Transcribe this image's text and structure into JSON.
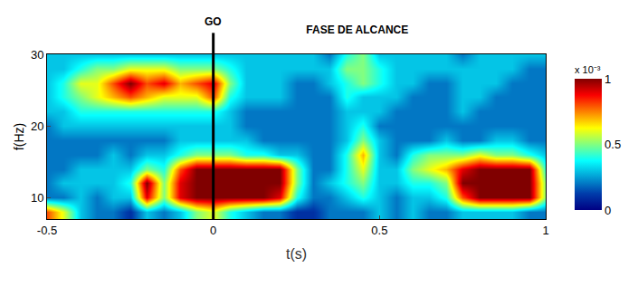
{
  "chart_data": {
    "type": "heatmap",
    "title": "FASE DE ALCANCE",
    "x_label": "t(s)",
    "y_label": "f(Hz)",
    "x": [
      -0.5,
      -0.45,
      -0.4,
      -0.35,
      -0.3,
      -0.25,
      -0.2,
      -0.15,
      -0.1,
      -0.05,
      0,
      0.05,
      0.1,
      0.15,
      0.2,
      0.25,
      0.3,
      0.35,
      0.4,
      0.45,
      0.5,
      0.55,
      0.6,
      0.65,
      0.7,
      0.75,
      0.8,
      0.85,
      0.9,
      0.95,
      1
    ],
    "y": [
      8,
      10,
      12,
      14,
      16,
      18,
      20,
      22,
      24,
      26,
      28,
      30
    ],
    "cells": [
      [
        0.8,
        0.6,
        0.3,
        0.2,
        0.2,
        0.1,
        0.3,
        0.2,
        0.3,
        0.5,
        0.6,
        0.4,
        0.3,
        0.2,
        0.2,
        0.1,
        0.1,
        0.2,
        0.2,
        0.2,
        0.3,
        0.2,
        0.3,
        0.2,
        0.2,
        0.3,
        0.3,
        0.3,
        0.3,
        0.2,
        0.2
      ],
      [
        0.2,
        0.2,
        0.3,
        0.2,
        0.3,
        0.3,
        0.9,
        0.5,
        0.9,
        1,
        1,
        1,
        1,
        1,
        0.9,
        0.4,
        0.2,
        0.2,
        0.3,
        0.4,
        0.3,
        0.2,
        0.3,
        0.3,
        0.4,
        0.8,
        1,
        1,
        1,
        1,
        0.5
      ],
      [
        0.2,
        0.3,
        0.3,
        0.3,
        0.3,
        0.4,
        1,
        0.5,
        0.9,
        1,
        1,
        1,
        1,
        1,
        1,
        0.5,
        0.2,
        0.3,
        0.4,
        0.5,
        0.3,
        0.3,
        0.4,
        0.4,
        0.5,
        1,
        1,
        1,
        1,
        1,
        0.5
      ],
      [
        0.2,
        0.2,
        0.3,
        0.3,
        0.3,
        0.3,
        0.5,
        0.4,
        0.8,
        1,
        1,
        1,
        1,
        1,
        1,
        0.5,
        0.2,
        0.2,
        0.4,
        0.6,
        0.3,
        0.3,
        0.5,
        0.6,
        0.7,
        0.9,
        1,
        1,
        1,
        1,
        0.4
      ],
      [
        0.2,
        0.2,
        0.2,
        0.2,
        0.3,
        0.2,
        0.3,
        0.3,
        0.4,
        0.5,
        0.5,
        0.5,
        0.4,
        0.4,
        0.3,
        0.3,
        0.2,
        0.2,
        0.4,
        0.7,
        0.3,
        0.2,
        0.4,
        0.5,
        0.5,
        0.5,
        0.6,
        0.5,
        0.5,
        0.4,
        0.3
      ],
      [
        0.2,
        0.2,
        0.2,
        0.2,
        0.2,
        0.2,
        0.2,
        0.2,
        0.3,
        0.3,
        0.3,
        0.3,
        0.3,
        0.2,
        0.2,
        0.2,
        0.2,
        0.2,
        0.3,
        0.5,
        0.3,
        0.2,
        0.2,
        0.2,
        0.3,
        0.2,
        0.2,
        0.3,
        0.3,
        0.2,
        0.2
      ],
      [
        0.2,
        0.3,
        0.3,
        0.3,
        0.3,
        0.3,
        0.3,
        0.3,
        0.3,
        0.3,
        0.3,
        0.3,
        0.2,
        0.2,
        0.2,
        0.2,
        0.2,
        0.2,
        0.3,
        0.4,
        0.2,
        0.2,
        0.2,
        0.2,
        0.2,
        0.2,
        0.2,
        0.2,
        0.2,
        0.2,
        0.2
      ],
      [
        0.3,
        0.3,
        0.4,
        0.4,
        0.4,
        0.4,
        0.4,
        0.4,
        0.4,
        0.4,
        0.4,
        0.3,
        0.2,
        0.2,
        0.2,
        0.2,
        0.2,
        0.2,
        0.3,
        0.3,
        0.3,
        0.2,
        0.2,
        0.2,
        0.2,
        0.3,
        0.2,
        0.2,
        0.2,
        0.2,
        0.2
      ],
      [
        0.3,
        0.4,
        0.5,
        0.6,
        0.7,
        0.8,
        0.7,
        0.6,
        0.6,
        0.6,
        0.8,
        0.4,
        0.3,
        0.3,
        0.3,
        0.2,
        0.2,
        0.2,
        0.4,
        0.3,
        0.3,
        0.3,
        0.2,
        0.2,
        0.2,
        0.3,
        0.3,
        0.2,
        0.2,
        0.2,
        0.2
      ],
      [
        0.3,
        0.4,
        0.6,
        0.6,
        0.8,
        1,
        0.8,
        0.9,
        0.7,
        0.8,
        0.9,
        0.5,
        0.3,
        0.3,
        0.3,
        0.2,
        0.2,
        0.3,
        0.4,
        0.5,
        0.4,
        0.3,
        0.3,
        0.2,
        0.2,
        0.3,
        0.3,
        0.3,
        0.2,
        0.2,
        0.2
      ],
      [
        0.3,
        0.3,
        0.4,
        0.5,
        0.5,
        0.6,
        0.6,
        0.6,
        0.5,
        0.5,
        0.5,
        0.4,
        0.3,
        0.3,
        0.3,
        0.3,
        0.3,
        0.3,
        0.5,
        0.5,
        0.4,
        0.3,
        0.3,
        0.3,
        0.3,
        0.3,
        0.3,
        0.3,
        0.3,
        0.2,
        0.2
      ],
      [
        0.3,
        0.3,
        0.3,
        0.3,
        0.3,
        0.3,
        0.3,
        0.3,
        0.3,
        0.3,
        0.3,
        0.3,
        0.3,
        0.3,
        0.3,
        0.3,
        0.3,
        0.2,
        0.4,
        0.5,
        0.3,
        0.3,
        0.3,
        0.3,
        0.3,
        0.2,
        0.3,
        0.3,
        0.3,
        0.3,
        0.3
      ]
    ],
    "xlim": [
      -0.5,
      1
    ],
    "xticks": [
      -0.5,
      0,
      0.5,
      1
    ],
    "ylim": [
      7,
      30
    ],
    "yticks": [
      10,
      20,
      30
    ],
    "colorbar_range": [
      0,
      1
    ],
    "colorbar_ticks": [
      0,
      0.5,
      1
    ],
    "colorbar_title": "x 10⁻³",
    "annotations": [
      {
        "x": 0,
        "label": "GO"
      }
    ]
  }
}
